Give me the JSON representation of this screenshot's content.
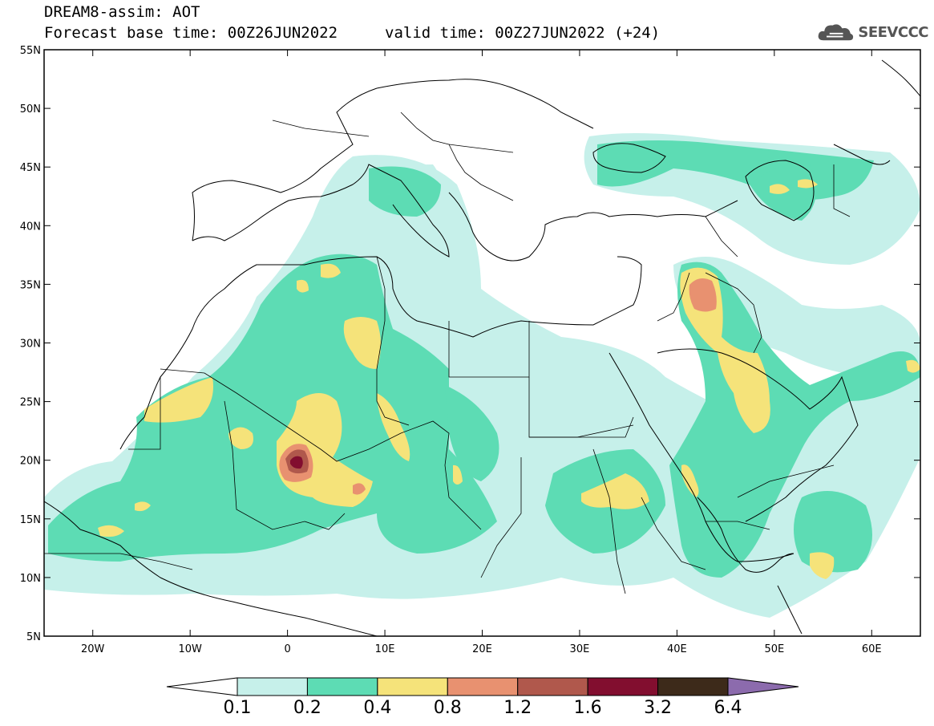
{
  "header": {
    "title": "DREAM8-assim: AOT",
    "base_time": "Forecast base time: 00Z26JUN2022",
    "valid_time": "valid time: 00Z27JUN2022 (+24)"
  },
  "logo": {
    "text": "SEEVCCC",
    "icon": "cloud-icon"
  },
  "map": {
    "lon_range": [
      -25,
      65
    ],
    "lat_range": [
      5,
      55
    ],
    "lon_ticks": [
      {
        "value": -20,
        "label": "20W"
      },
      {
        "value": -10,
        "label": "10W"
      },
      {
        "value": 0,
        "label": "0"
      },
      {
        "value": 10,
        "label": "10E"
      },
      {
        "value": 20,
        "label": "20E"
      },
      {
        "value": 30,
        "label": "30E"
      },
      {
        "value": 40,
        "label": "40E"
      },
      {
        "value": 50,
        "label": "50E"
      },
      {
        "value": 60,
        "label": "60E"
      }
    ],
    "lat_ticks": [
      {
        "value": 55,
        "label": "55N"
      },
      {
        "value": 50,
        "label": "50N"
      },
      {
        "value": 45,
        "label": "45N"
      },
      {
        "value": 40,
        "label": "40N"
      },
      {
        "value": 35,
        "label": "35N"
      },
      {
        "value": 30,
        "label": "30N"
      },
      {
        "value": 25,
        "label": "25N"
      },
      {
        "value": 20,
        "label": "20N"
      },
      {
        "value": 15,
        "label": "15N"
      },
      {
        "value": 10,
        "label": "10N"
      },
      {
        "value": 5,
        "label": "5N"
      }
    ]
  },
  "colorbar": {
    "levels": [
      "0.1",
      "0.2",
      "0.4",
      "0.8",
      "1.2",
      "1.6",
      "3.2",
      "6.4"
    ],
    "colors": [
      "#ffffff",
      "#c6f0ea",
      "#5ddcb4",
      "#f5e37a",
      "#e89170",
      "#b0584c",
      "#820e2f",
      "#3d2a1a",
      "#8c6bad"
    ]
  }
}
